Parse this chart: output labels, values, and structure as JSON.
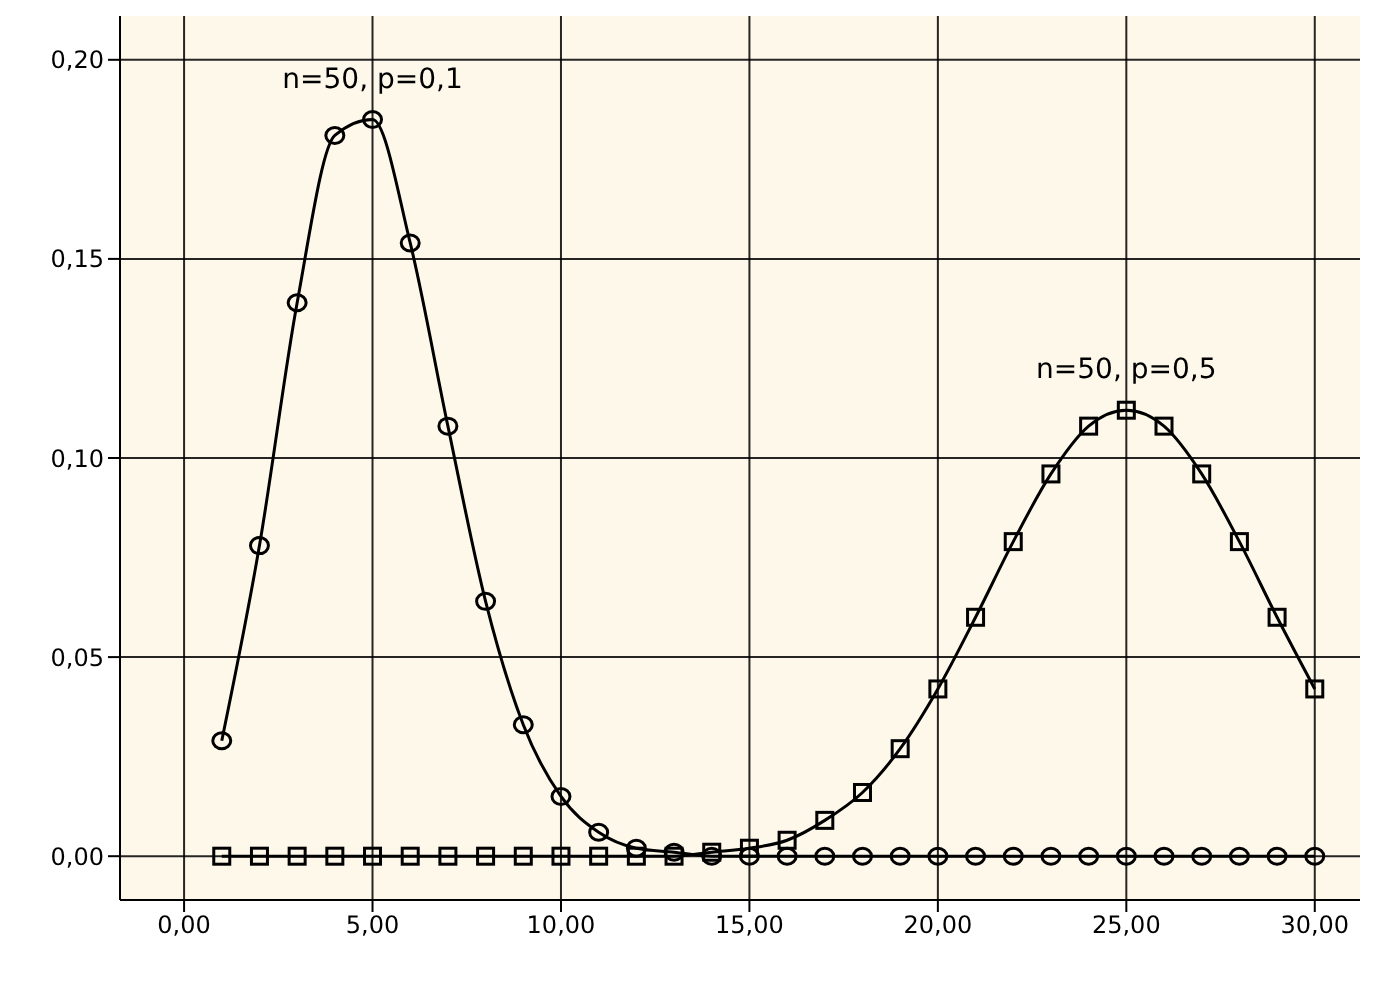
{
  "chart_data": {
    "type": "line",
    "x": [
      1,
      2,
      3,
      4,
      5,
      6,
      7,
      8,
      9,
      10,
      11,
      12,
      13,
      14,
      15,
      16,
      17,
      18,
      19,
      20,
      21,
      22,
      23,
      24,
      25,
      26,
      27,
      28,
      29,
      30
    ],
    "series": [
      {
        "color": "#000000",
        "marker": "circle",
        "values": [
          0.029,
          0.078,
          0.139,
          0.181,
          0.185,
          0.154,
          0.108,
          0.064,
          0.033,
          0.015,
          0.006,
          0.002,
          0.001,
          0,
          0,
          0,
          0,
          0,
          0,
          0,
          0,
          0,
          0,
          0,
          0,
          0,
          0,
          0,
          0,
          0
        ]
      },
      {
        "color": "#000000",
        "marker": "square",
        "values": [
          0,
          0,
          0,
          0,
          0,
          0,
          0,
          0,
          0,
          0,
          0,
          0,
          0,
          0.001,
          0.002,
          0.004,
          0.009,
          0.016,
          0.027,
          0.042,
          0.06,
          0.079,
          0.096,
          0.108,
          0.112,
          0.108,
          0.096,
          0.079,
          0.06,
          0.042
        ]
      }
    ],
    "annotations": [
      "n=50, p=0,1",
      "n=50, p=0,5"
    ],
    "xlim": [
      -1.7,
      31.2
    ],
    "ylim": [
      -0.011,
      0.211
    ],
    "xticks": [
      {
        "value": 0,
        "label": "0,00"
      },
      {
        "value": 5,
        "label": "5,00"
      },
      {
        "value": 10,
        "label": "10,00"
      },
      {
        "value": 15,
        "label": "15,00"
      },
      {
        "value": 20,
        "label": "20,00"
      },
      {
        "value": 25,
        "label": "25,00"
      },
      {
        "value": 30,
        "label": "30,00"
      }
    ],
    "yticks": [
      {
        "value": 0,
        "label": "0,00"
      },
      {
        "value": 0.05,
        "label": "0,05"
      },
      {
        "value": 0.1,
        "label": "0,10"
      },
      {
        "value": 0.15,
        "label": "0,15"
      },
      {
        "value": 0.2,
        "label": "0,20"
      }
    ],
    "grid": true,
    "legend": false,
    "line_style": "solid"
  }
}
